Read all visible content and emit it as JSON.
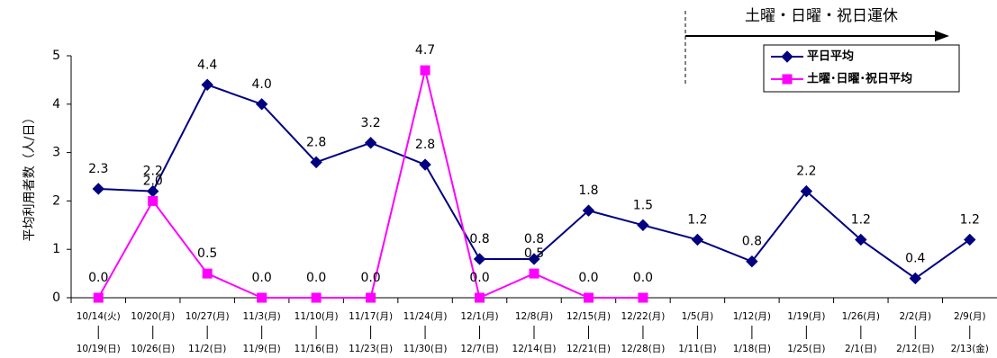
{
  "chart_data": {
    "type": "line",
    "ylabel": "平均利用者数（人/日）",
    "annotation": "土曜・日曜・祝日運休",
    "categories": [
      [
        "10/14(火)",
        "10/19(日)"
      ],
      [
        "10/20(月)",
        "10/26(日)"
      ],
      [
        "10/27(月)",
        "11/2(日)"
      ],
      [
        "11/3(月)",
        "11/9(日)"
      ],
      [
        "11/10(月)",
        "11/16(日)"
      ],
      [
        "11/17(月)",
        "11/23(日)"
      ],
      [
        "11/24(月)",
        "11/30(日)"
      ],
      [
        "12/1(月)",
        "12/7(日)"
      ],
      [
        "12/8(月)",
        "12/14(日)"
      ],
      [
        "12/15(月)",
        "12/21(日)"
      ],
      [
        "12/22(月)",
        "12/28(日)"
      ],
      [
        "1/5(月)",
        "1/11(日)"
      ],
      [
        "1/12(月)",
        "1/18(日)"
      ],
      [
        "1/19(月)",
        "1/25(日)"
      ],
      [
        "1/26(月)",
        "2/1(日)"
      ],
      [
        "2/2(月)",
        "2/12(日)"
      ],
      [
        "2/9(月)",
        "2/13(金)"
      ]
    ],
    "series": [
      {
        "name": "平日平均",
        "color": "#000080",
        "marker": "diamond",
        "values": [
          2.25,
          2.2,
          4.4,
          4.0,
          2.8,
          3.2,
          2.75,
          0.8,
          0.8,
          1.8,
          1.5,
          1.2,
          0.75,
          2.2,
          1.2,
          0.4,
          1.2
        ],
        "value_labels": [
          "2.3",
          "2.2",
          "4.4",
          "4.0",
          "2.8",
          "3.2",
          "2.8",
          "0.8",
          "0.8",
          "1.8",
          "1.5",
          "1.2",
          "0.8",
          "2.2",
          "1.2",
          "0.4",
          "1.2"
        ]
      },
      {
        "name": "土曜･日曜･祝日平均",
        "color": "#ff00ff",
        "marker": "square",
        "values": [
          0,
          2.0,
          0.5,
          0,
          0,
          0,
          4.7,
          0,
          0.5,
          0,
          0,
          null,
          null,
          null,
          null,
          null,
          null
        ],
        "value_labels": [
          "0.0",
          "2.0",
          "0.5",
          "0.0",
          "0.0",
          "0.0",
          "4.7",
          "0.0",
          "0.5",
          "0.0",
          "0.0",
          null,
          null,
          null,
          null,
          null,
          null
        ]
      }
    ],
    "ylim": [
      0,
      5
    ],
    "yticks": [
      0,
      1,
      2,
      3,
      4,
      5
    ],
    "legend": "upper right"
  }
}
